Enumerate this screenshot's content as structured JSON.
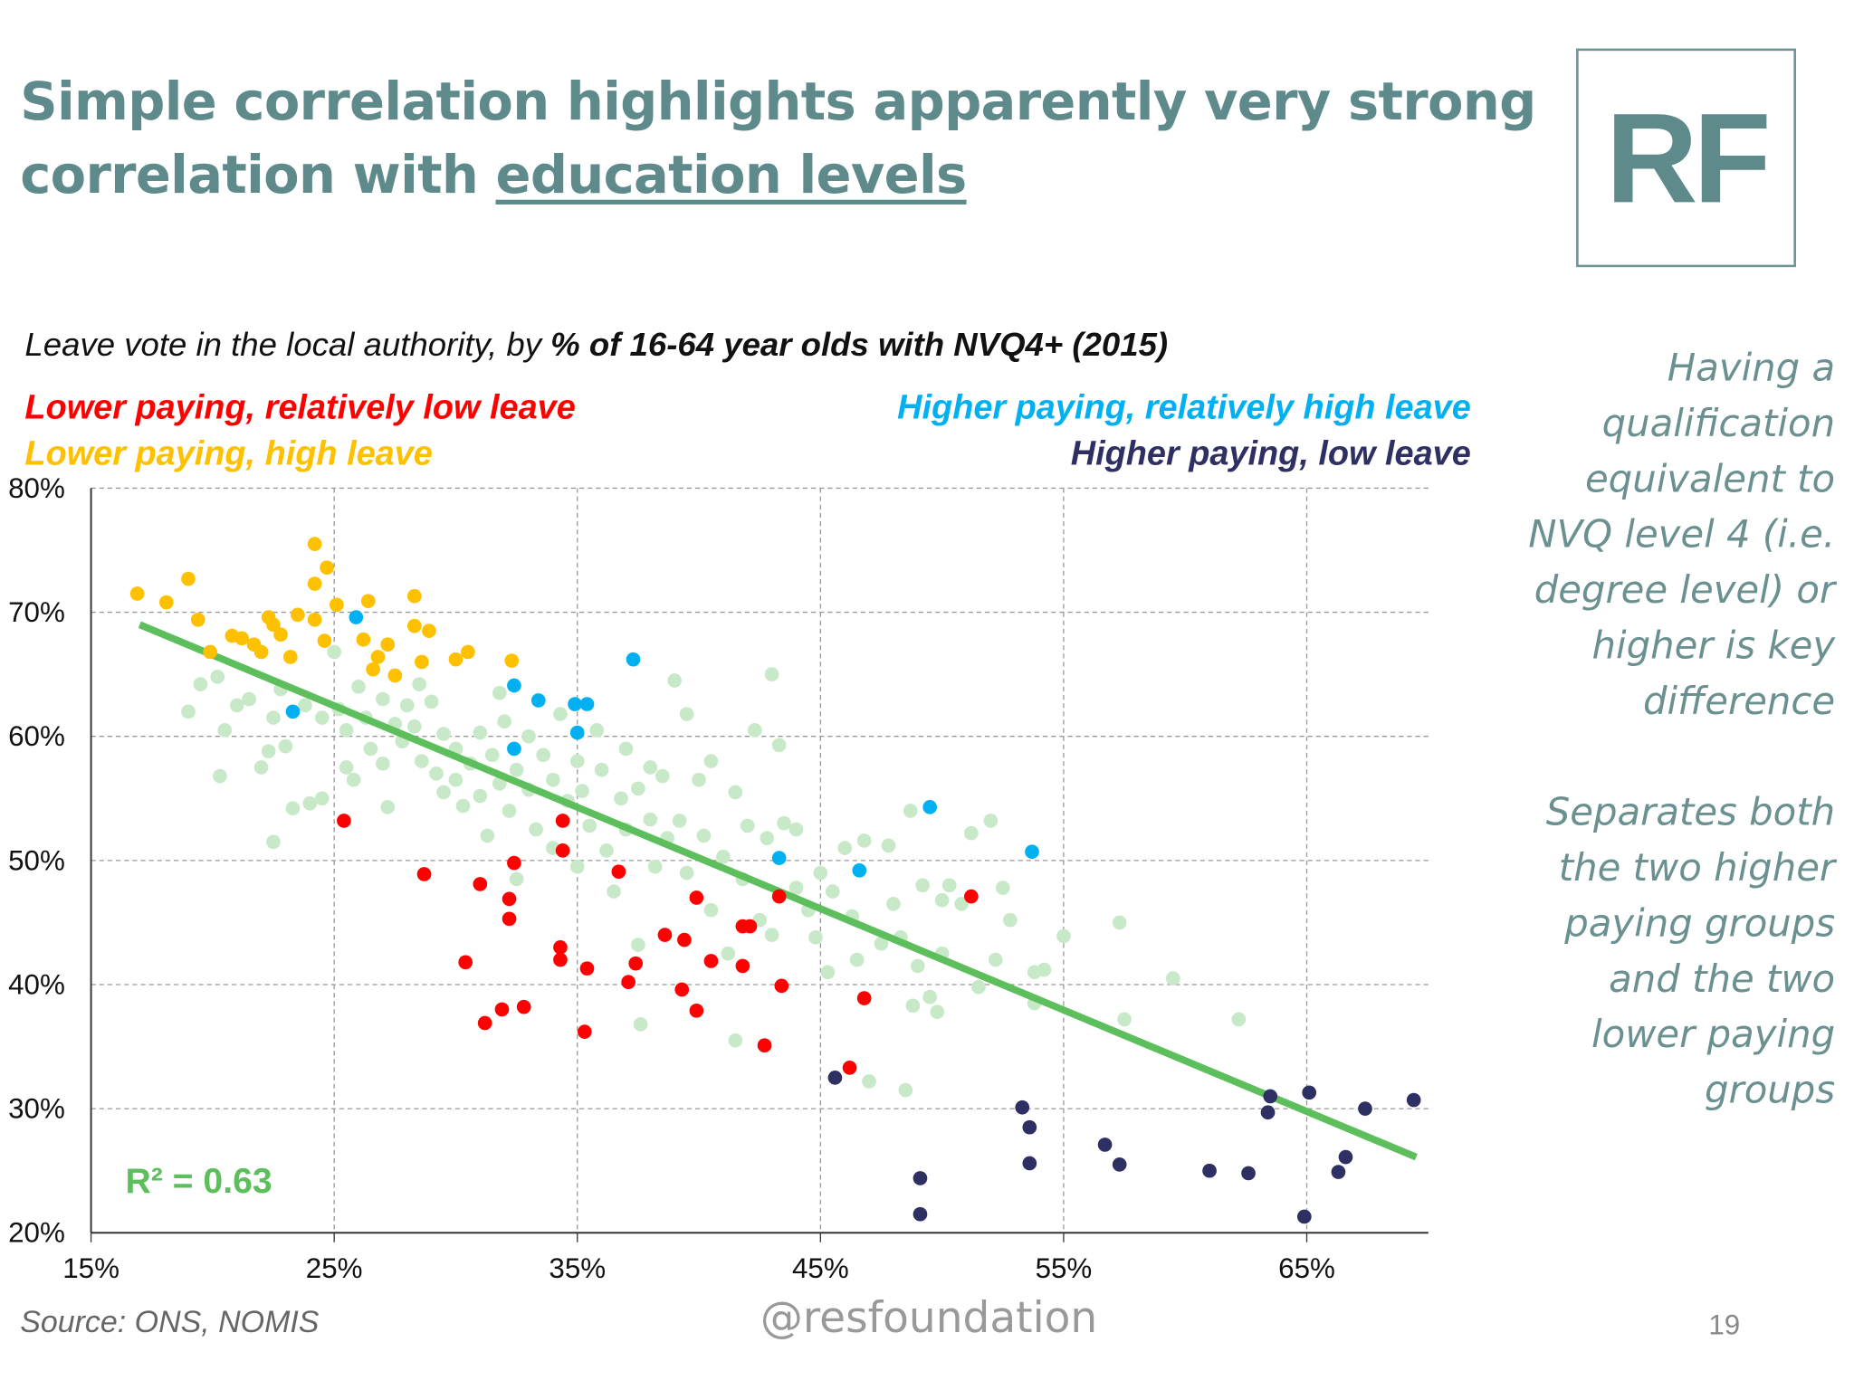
{
  "title": {
    "line1": "Simple correlation highlights apparently very strong",
    "line2_prefix": "correlation with ",
    "line2_link": "education levels"
  },
  "logo": "RF",
  "side_text": {
    "para1": [
      "Having a",
      "qualification",
      "equivalent to",
      "NVQ level 4 (i.e.",
      "degree level) or",
      "higher is key",
      "difference"
    ],
    "para2": [
      "Separates both",
      "the two higher",
      "paying groups",
      "and the two",
      "lower paying",
      "groups"
    ]
  },
  "footer": {
    "source": "Source: ONS, NOMIS",
    "handle": "@resfoundation",
    "page": "19"
  },
  "chart_data": {
    "type": "scatter",
    "title_prefix": "Leave vote in the local authority, by ",
    "title_bold": "% of 16-64 year olds with NVQ4+ (2015)",
    "xlim": [
      15,
      70
    ],
    "ylim": [
      20,
      80
    ],
    "x_ticks": [
      15,
      25,
      35,
      45,
      55,
      65
    ],
    "x_tick_labels": [
      "15%",
      "25%",
      "35%",
      "45%",
      "55%",
      "65%"
    ],
    "y_ticks": [
      20,
      30,
      40,
      50,
      60,
      70,
      80
    ],
    "y_tick_labels": [
      "20%",
      "30%",
      "40%",
      "50%",
      "60%",
      "70%",
      "80%"
    ],
    "grid": true,
    "annotation": "R² = 0.63",
    "trendline": {
      "x": [
        17,
        69.5
      ],
      "y": [
        69.0,
        26.1
      ],
      "color": "#5CBF5C"
    },
    "series": [
      {
        "key": "other",
        "color": "#C8E9C8",
        "points": [
          [
            19,
            62
          ],
          [
            19.5,
            64.2
          ],
          [
            20.2,
            64.8
          ],
          [
            20.5,
            60.5
          ],
          [
            20.3,
            56.8
          ],
          [
            21,
            62.5
          ],
          [
            21.5,
            63
          ],
          [
            22,
            57.5
          ],
          [
            22.3,
            58.8
          ],
          [
            22.5,
            61.5
          ],
          [
            22.8,
            63.8
          ],
          [
            23,
            59.2
          ],
          [
            22.5,
            51.5
          ],
          [
            23.3,
            54.2
          ],
          [
            24,
            54.6
          ],
          [
            24.5,
            55
          ],
          [
            23.8,
            62.5
          ],
          [
            24.5,
            61.5
          ],
          [
            25,
            66.8
          ],
          [
            25.2,
            62.2
          ],
          [
            25.5,
            60.5
          ],
          [
            25.5,
            57.5
          ],
          [
            25.8,
            56.5
          ],
          [
            26,
            64
          ],
          [
            26.3,
            61.5
          ],
          [
            26.5,
            59
          ],
          [
            27,
            63
          ],
          [
            27,
            57.8
          ],
          [
            27.2,
            54.3
          ],
          [
            27.5,
            61
          ],
          [
            27.8,
            59.6
          ],
          [
            28,
            62.5
          ],
          [
            28.3,
            60.8
          ],
          [
            28.6,
            58
          ],
          [
            28.5,
            64.2
          ],
          [
            29,
            62.8
          ],
          [
            29.2,
            57
          ],
          [
            29.5,
            55.5
          ],
          [
            29.5,
            60.2
          ],
          [
            30,
            59
          ],
          [
            30,
            56.5
          ],
          [
            30.3,
            54.4
          ],
          [
            30.6,
            57.8
          ],
          [
            31,
            60.3
          ],
          [
            31,
            55.2
          ],
          [
            31.3,
            52
          ],
          [
            31.5,
            58.5
          ],
          [
            31.8,
            56.2
          ],
          [
            31.8,
            63.5
          ],
          [
            32,
            61.2
          ],
          [
            32.2,
            54
          ],
          [
            32.5,
            57.3
          ],
          [
            32.5,
            48.5
          ],
          [
            33,
            55.7
          ],
          [
            33,
            60
          ],
          [
            33.3,
            52.5
          ],
          [
            33.6,
            58.5
          ],
          [
            34,
            56.5
          ],
          [
            34,
            51
          ],
          [
            34.3,
            61.8
          ],
          [
            34.6,
            54.8
          ],
          [
            35,
            58
          ],
          [
            35,
            49.5
          ],
          [
            35.2,
            55.6
          ],
          [
            35.5,
            52.8
          ],
          [
            35.8,
            60.5
          ],
          [
            36,
            57.3
          ],
          [
            36.2,
            50.8
          ],
          [
            36.5,
            47.5
          ],
          [
            36.8,
            55
          ],
          [
            37,
            59
          ],
          [
            37,
            52.5
          ],
          [
            37.5,
            55.8
          ],
          [
            37.5,
            43.2
          ],
          [
            38,
            53.3
          ],
          [
            38,
            57.5
          ],
          [
            38.2,
            49.5
          ],
          [
            38.5,
            56.8
          ],
          [
            38.7,
            51.8
          ],
          [
            39,
            64.5
          ],
          [
            39.2,
            53.2
          ],
          [
            39.5,
            61.8
          ],
          [
            39.5,
            49
          ],
          [
            40,
            56.5
          ],
          [
            40.2,
            52
          ],
          [
            40.5,
            58
          ],
          [
            40.5,
            46
          ],
          [
            41,
            50.3
          ],
          [
            41.2,
            42.5
          ],
          [
            41.5,
            55.5
          ],
          [
            41.8,
            48.5
          ],
          [
            42,
            52.8
          ],
          [
            42.3,
            60.5
          ],
          [
            42.5,
            45.2
          ],
          [
            42.8,
            51.8
          ],
          [
            43,
            65
          ],
          [
            43,
            44
          ],
          [
            43.3,
            59.3
          ],
          [
            43.5,
            53
          ],
          [
            44,
            47.8
          ],
          [
            44,
            52.5
          ],
          [
            44.5,
            46
          ],
          [
            44.8,
            43.8
          ],
          [
            45,
            49
          ],
          [
            45.3,
            41
          ],
          [
            45.5,
            47.5
          ],
          [
            46,
            51
          ],
          [
            46.3,
            45.5
          ],
          [
            46.5,
            42
          ],
          [
            46.8,
            51.6
          ],
          [
            47,
            32.2
          ],
          [
            47.5,
            43.3
          ],
          [
            47.8,
            51.2
          ],
          [
            48,
            46.5
          ],
          [
            48.3,
            43.8
          ],
          [
            48.7,
            54
          ],
          [
            48.8,
            38.3
          ],
          [
            49,
            41.5
          ],
          [
            49.2,
            48
          ],
          [
            49.5,
            39
          ],
          [
            49.8,
            37.8
          ],
          [
            50,
            46.8
          ],
          [
            50,
            42.5
          ],
          [
            50.3,
            48
          ],
          [
            50.8,
            46.5
          ],
          [
            51.2,
            52.2
          ],
          [
            51.5,
            39.8
          ],
          [
            52,
            53.2
          ],
          [
            52.2,
            42
          ],
          [
            52.5,
            47.8
          ],
          [
            52.8,
            45.2
          ],
          [
            53.8,
            41
          ],
          [
            54.2,
            41.2
          ],
          [
            53.8,
            38.5
          ],
          [
            55,
            43.9
          ],
          [
            57.3,
            45
          ],
          [
            57.5,
            37.2
          ],
          [
            59.5,
            40.5
          ],
          [
            62.2,
            37.2
          ],
          [
            48.5,
            31.5
          ],
          [
            41.5,
            35.5
          ],
          [
            37.6,
            36.8
          ]
        ]
      },
      {
        "key": "lower-paying-high-leave",
        "name": "Lower paying, high leave",
        "color": "#FFC000",
        "points": [
          [
            16.9,
            71.5
          ],
          [
            18.1,
            70.8
          ],
          [
            19.0,
            72.7
          ],
          [
            19.4,
            69.4
          ],
          [
            19.9,
            66.8
          ],
          [
            20.8,
            68.1
          ],
          [
            21.2,
            67.9
          ],
          [
            21.7,
            67.4
          ],
          [
            22.0,
            66.8
          ],
          [
            22.3,
            69.6
          ],
          [
            22.5,
            69.0
          ],
          [
            22.8,
            68.2
          ],
          [
            23.2,
            66.4
          ],
          [
            23.5,
            69.8
          ],
          [
            24.2,
            75.5
          ],
          [
            24.2,
            72.3
          ],
          [
            24.7,
            73.6
          ],
          [
            24.2,
            69.4
          ],
          [
            24.6,
            67.7
          ],
          [
            25.1,
            70.6
          ],
          [
            26.4,
            70.9
          ],
          [
            26.2,
            67.8
          ],
          [
            27.2,
            67.4
          ],
          [
            26.8,
            66.4
          ],
          [
            26.6,
            65.4
          ],
          [
            27.5,
            64.9
          ],
          [
            28.3,
            71.3
          ],
          [
            28.3,
            68.9
          ],
          [
            28.9,
            68.5
          ],
          [
            28.6,
            66.0
          ],
          [
            30.0,
            66.2
          ],
          [
            30.5,
            66.8
          ],
          [
            32.3,
            66.1
          ]
        ]
      },
      {
        "key": "lower-paying-low-leave",
        "name": "Lower paying, relatively low leave",
        "color": "#FF0000",
        "points": [
          [
            25.4,
            53.2
          ],
          [
            28.7,
            48.9
          ],
          [
            31.0,
            48.1
          ],
          [
            32.2,
            46.9
          ],
          [
            32.2,
            45.3
          ],
          [
            32.4,
            49.8
          ],
          [
            34.4,
            53.2
          ],
          [
            34.4,
            50.8
          ],
          [
            36.7,
            49.1
          ],
          [
            30.4,
            41.8
          ],
          [
            31.2,
            36.9
          ],
          [
            31.9,
            38.0
          ],
          [
            32.8,
            38.2
          ],
          [
            34.3,
            43.0
          ],
          [
            34.3,
            42.0
          ],
          [
            35.4,
            41.3
          ],
          [
            35.3,
            36.2
          ],
          [
            37.1,
            40.2
          ],
          [
            37.4,
            41.7
          ],
          [
            38.6,
            44.0
          ],
          [
            39.4,
            43.6
          ],
          [
            39.3,
            39.6
          ],
          [
            39.9,
            47.0
          ],
          [
            39.9,
            37.9
          ],
          [
            40.5,
            41.9
          ],
          [
            41.8,
            44.7
          ],
          [
            42.1,
            44.7
          ],
          [
            41.8,
            41.5
          ],
          [
            42.7,
            35.1
          ],
          [
            43.3,
            47.1
          ],
          [
            43.4,
            39.9
          ],
          [
            46.2,
            33.3
          ],
          [
            46.8,
            38.9
          ],
          [
            51.2,
            47.1
          ]
        ]
      },
      {
        "key": "higher-paying-high-leave",
        "name": "Higher paying, relatively high leave",
        "color": "#00B0F0",
        "points": [
          [
            25.9,
            69.6
          ],
          [
            23.3,
            62.0
          ],
          [
            32.4,
            64.1
          ],
          [
            33.4,
            62.9
          ],
          [
            34.9,
            62.6
          ],
          [
            35.4,
            62.6
          ],
          [
            35.0,
            60.3
          ],
          [
            32.4,
            59.0
          ],
          [
            37.3,
            66.2
          ],
          [
            43.3,
            50.2
          ],
          [
            46.6,
            49.2
          ],
          [
            49.5,
            54.3
          ],
          [
            53.7,
            50.7
          ]
        ]
      },
      {
        "key": "higher-paying-low-leave",
        "name": "Higher paying, low leave",
        "color": "#2E2F62",
        "points": [
          [
            45.6,
            32.5
          ],
          [
            53.3,
            30.1
          ],
          [
            53.6,
            28.5
          ],
          [
            53.6,
            25.6
          ],
          [
            56.7,
            27.1
          ],
          [
            57.3,
            25.5
          ],
          [
            49.1,
            24.4
          ],
          [
            49.1,
            21.5
          ],
          [
            61.0,
            25.0
          ],
          [
            62.6,
            24.8
          ],
          [
            63.5,
            31.0
          ],
          [
            63.4,
            29.7
          ],
          [
            65.1,
            31.3
          ],
          [
            67.4,
            30.0
          ],
          [
            69.4,
            30.7
          ],
          [
            66.6,
            26.1
          ],
          [
            66.3,
            24.9
          ],
          [
            64.9,
            21.3
          ]
        ]
      }
    ]
  }
}
